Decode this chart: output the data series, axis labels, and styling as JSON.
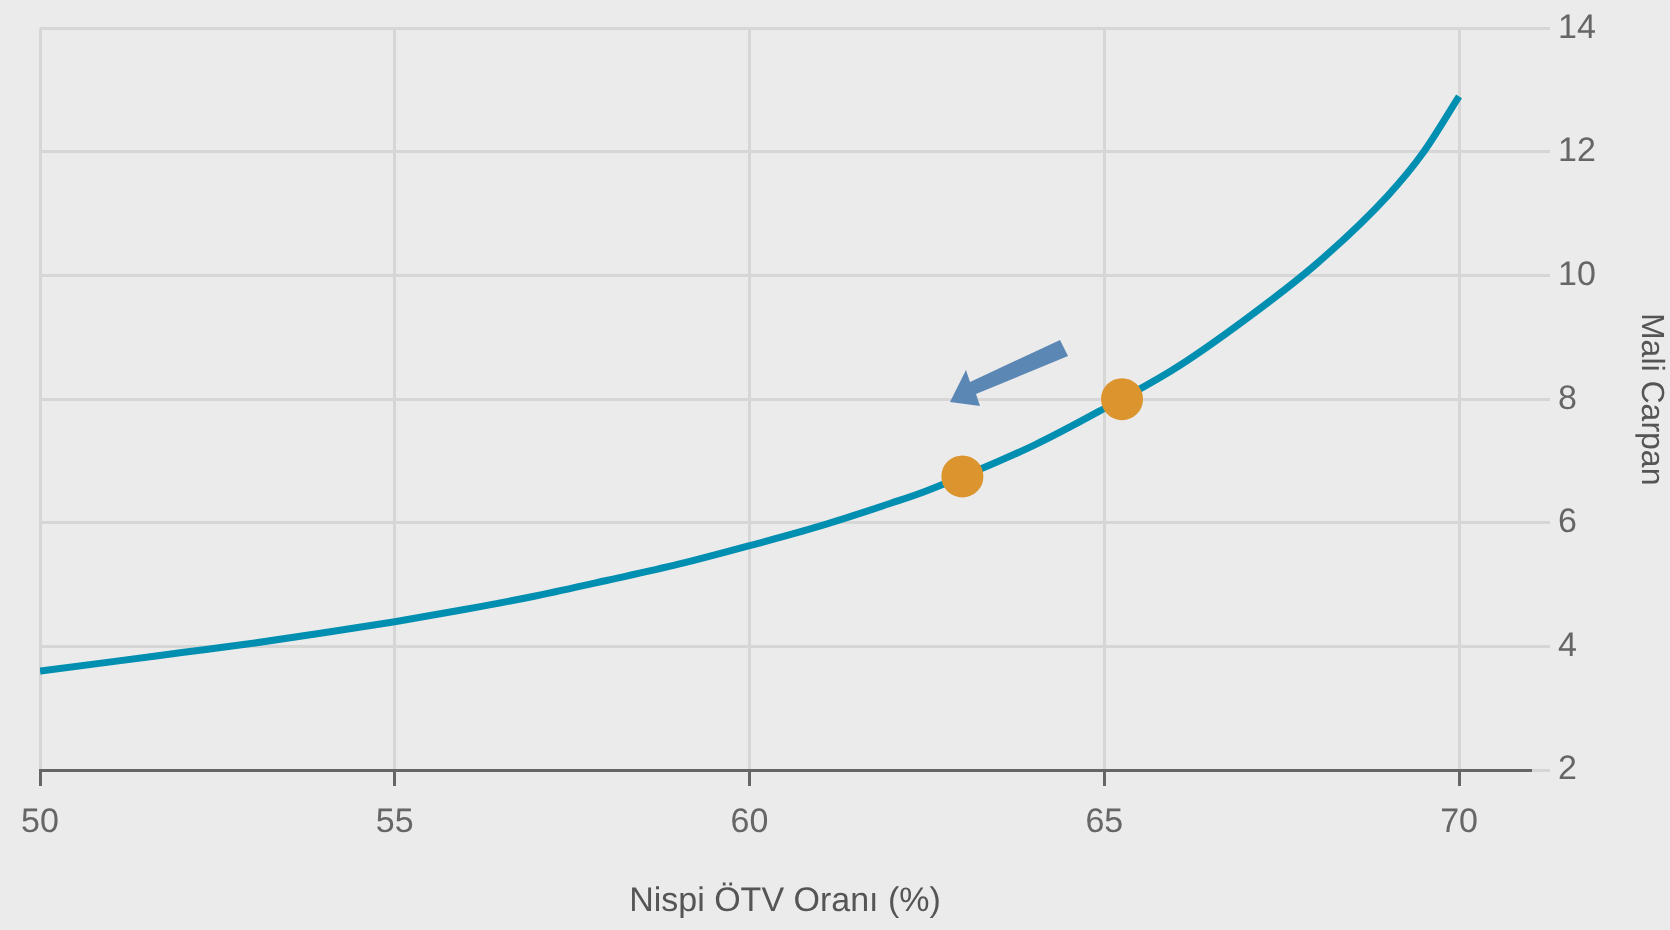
{
  "chart_data": {
    "type": "line",
    "xlabel": "Nispi ÖTV Oranı (%)",
    "ylabel": "Mali Carpan",
    "xlim": [
      50,
      71
    ],
    "ylim": [
      2,
      14
    ],
    "xticks": [
      50,
      55,
      60,
      65,
      70
    ],
    "yticks": [
      2,
      4,
      6,
      8,
      10,
      12,
      14
    ],
    "grid": true,
    "legend": false,
    "series": [
      {
        "type": "line",
        "color": "#008fb0",
        "marker": "none",
        "x": [
          50,
          51,
          52,
          53,
          54,
          55,
          56,
          57,
          58,
          59,
          60,
          61,
          62,
          62.5,
          64,
          65,
          66,
          67,
          68,
          69,
          69.5,
          70
        ],
        "values": [
          3.6,
          3.75,
          3.9,
          4.05,
          4.22,
          4.4,
          4.6,
          4.82,
          5.07,
          5.33,
          5.63,
          5.95,
          6.32,
          6.52,
          7.25,
          7.85,
          8.5,
          9.3,
          10.2,
          11.3,
          12.0,
          12.9
        ]
      },
      {
        "type": "scatter",
        "color": "#dc952e",
        "marker": "circle",
        "x": [
          63,
          65.25
        ],
        "values": [
          6.75,
          8.0
        ]
      }
    ]
  }
}
